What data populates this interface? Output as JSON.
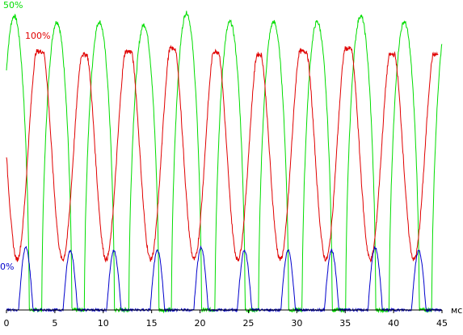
{
  "chart_data": {
    "type": "line",
    "xlabel": "",
    "x_unit": "мс",
    "ylabel": "",
    "xlim": [
      0,
      45
    ],
    "ylim": [
      0,
      100
    ],
    "x_ticks": [
      0,
      5,
      10,
      15,
      20,
      25,
      30,
      35,
      40,
      45
    ],
    "x_tick_labels": [
      "0",
      "5",
      "10",
      "15",
      "20",
      "25",
      "30",
      "35",
      "40",
      "45"
    ],
    "grid": false,
    "legend": null,
    "series": [
      {
        "label": "50%",
        "color": "#00dd00",
        "pulse_centers": [
          0.8,
          5.2,
          9.6,
          14.2,
          18.6,
          23.1,
          27.6,
          32.1,
          36.6,
          41.1,
          45.5
        ],
        "pulse_peaks": [
          99,
          97,
          97,
          96,
          100,
          97,
          97,
          97,
          99,
          97,
          97
        ],
        "pulse_half_width": 1.55,
        "baseline": 0
      },
      {
        "label": "100%",
        "color": "#e00000",
        "plateau": 87,
        "dip_centers": [
          1.1,
          5.8,
          10.3,
          14.9,
          19.4,
          23.9,
          28.3,
          33.0,
          37.6,
          42.1
        ],
        "dip_min": 17,
        "dip_half_width": 1.05,
        "plateau_values": [
          87,
          87,
          86,
          87,
          88,
          87,
          86,
          87,
          88,
          86,
          86
        ]
      },
      {
        "label": "0%",
        "color": "#0000cc",
        "baseline": 0,
        "pulse_centers": [
          2.0,
          6.6,
          11.1,
          15.6,
          20.1,
          24.6,
          29.1,
          33.6,
          38.1,
          42.6
        ],
        "pulse_peaks": [
          21,
          20,
          20,
          20,
          21,
          20,
          20,
          20,
          21,
          20
        ],
        "pulse_half_width": 0.75
      }
    ]
  }
}
